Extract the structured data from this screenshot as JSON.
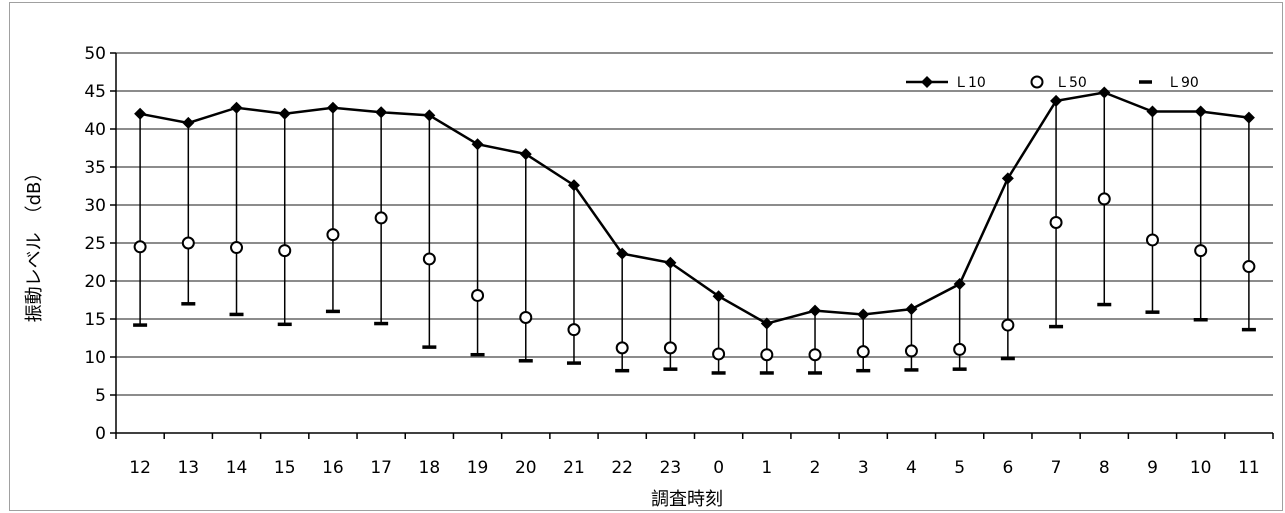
{
  "chart_data": {
    "type": "line",
    "ylabel": "振動レベル　（dB）",
    "xlabel": "調査時刻",
    "ylim": [
      0,
      50
    ],
    "yticks": [
      "0",
      "5",
      "10",
      "15",
      "20",
      "25",
      "30",
      "35",
      "40",
      "45",
      "50"
    ],
    "categories": [
      "12",
      "13",
      "14",
      "15",
      "16",
      "17",
      "18",
      "19",
      "20",
      "21",
      "22",
      "23",
      "0",
      "1",
      "2",
      "3",
      "4",
      "5",
      "6",
      "7",
      "8",
      "9",
      "10",
      "11"
    ],
    "grid": true,
    "legend_position": "top-right",
    "series": [
      {
        "name": "Ｌ10",
        "marker": "diamond",
        "line": true,
        "color": "#000000",
        "values": [
          42.0,
          40.8,
          42.8,
          42.0,
          42.8,
          42.2,
          41.8,
          38.0,
          36.7,
          32.6,
          23.6,
          22.4,
          18.0,
          14.4,
          16.1,
          15.6,
          16.3,
          19.6,
          33.5,
          43.7,
          44.8,
          42.3,
          42.3,
          41.5
        ]
      },
      {
        "name": "Ｌ50",
        "marker": "circle",
        "line": false,
        "color": "#000000",
        "values": [
          24.5,
          25.0,
          24.4,
          24.0,
          26.1,
          28.3,
          22.9,
          18.1,
          15.2,
          13.6,
          11.2,
          11.2,
          10.4,
          10.3,
          10.3,
          10.7,
          10.8,
          11.0,
          14.2,
          27.7,
          30.8,
          25.4,
          24.0,
          21.9
        ]
      },
      {
        "name": "Ｌ90",
        "marker": "dash",
        "line": false,
        "color": "#000000",
        "values": [
          14.2,
          17.0,
          15.6,
          14.3,
          16.0,
          14.4,
          11.3,
          10.3,
          9.5,
          9.2,
          8.2,
          8.4,
          7.9,
          7.9,
          7.9,
          8.2,
          8.3,
          8.4,
          9.8,
          14.0,
          16.9,
          15.9,
          14.9,
          13.6
        ]
      }
    ]
  }
}
